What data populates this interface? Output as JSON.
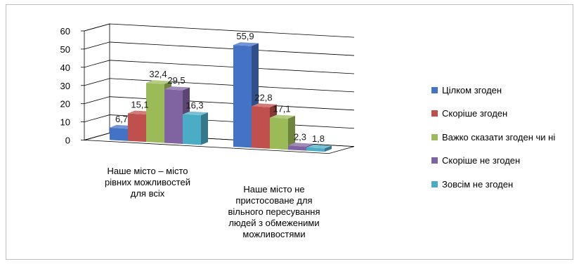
{
  "chart_data": {
    "type": "bar",
    "categories": [
      "Наше місто – місто рівних можливостей для всіх",
      "Наше місто не пристосоване для вільного пересування людей з обмеженими можливостями"
    ],
    "category_lines": [
      [
        "Наше місто – місто",
        "рівних можливостей",
        "для всіх"
      ],
      [
        "Наше місто не",
        "пристосоване для",
        "вільного пересування",
        "людей з обмеженими",
        "можливостями"
      ]
    ],
    "series": [
      {
        "name": "Цілком згоден",
        "color": "#4472C4",
        "values": [
          6.7,
          55.9
        ],
        "labels": [
          "6,7",
          "55,9"
        ]
      },
      {
        "name": "Скоріше згоден",
        "color": "#C0504D",
        "values": [
          15.1,
          22.8
        ],
        "labels": [
          "15,1",
          "22,8"
        ]
      },
      {
        "name": "Важко сказати згоден чи ні",
        "color": "#9BBB59",
        "values": [
          32.4,
          17.1
        ],
        "labels": [
          "32,4",
          "17,1"
        ]
      },
      {
        "name": "Скоріше не згоден",
        "color": "#8064A2",
        "values": [
          29.5,
          2.3
        ],
        "labels": [
          "29,5",
          "2,3"
        ]
      },
      {
        "name": "Зовсім не згоден",
        "color": "#4BACC6",
        "values": [
          16.3,
          1.8
        ],
        "labels": [
          "16,3",
          "1,8"
        ]
      }
    ],
    "y_ticks": [
      "0",
      "10",
      "20",
      "30",
      "40",
      "50",
      "60"
    ],
    "ylim": [
      0,
      60
    ],
    "grid": true,
    "legend_position": "right",
    "title": "",
    "xlabel": "",
    "ylabel": ""
  }
}
